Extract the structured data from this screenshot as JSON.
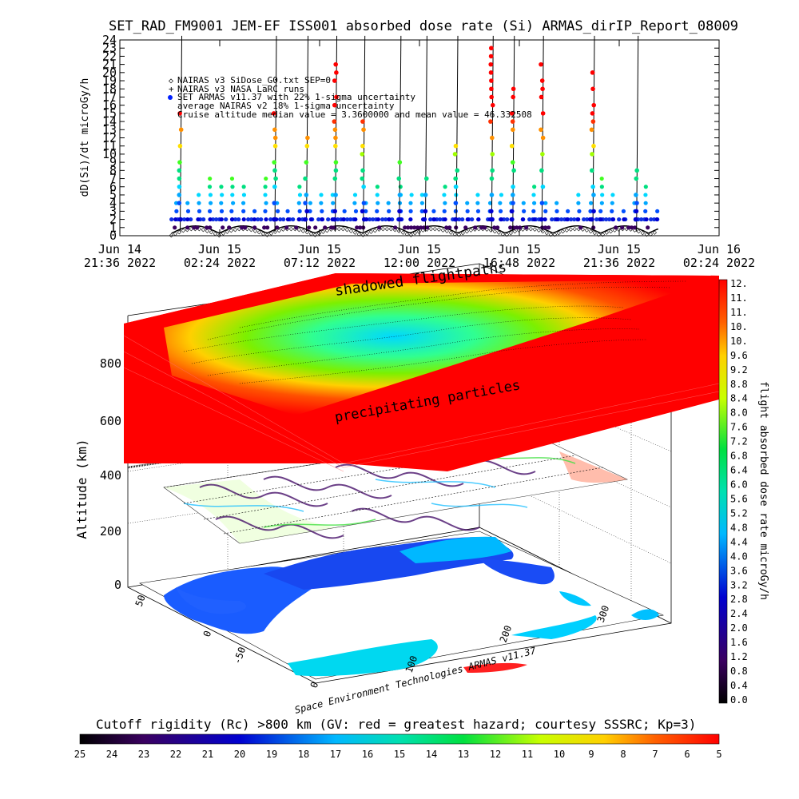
{
  "chart_data": [
    {
      "type": "scatter",
      "title": "SET_RAD_FM9001  JEM-EF ISS001 absorbed dose rate (Si) ARMAS_dirIP_Report_08009",
      "ylabel": "dD(Si)/dt microGy/h",
      "ylim": [
        0,
        24
      ],
      "y_ticks": [
        "0",
        "1",
        "2",
        "3",
        "4",
        "5",
        "6",
        "7",
        "8",
        "9",
        "10",
        "11",
        "12",
        "13",
        "14",
        "15",
        "16",
        "17",
        "18",
        "19",
        "20",
        "21",
        "22",
        "23",
        "24"
      ],
      "x_tick_labels": [
        {
          "line1": "Jun 14",
          "line2": "21:36 2022"
        },
        {
          "line1": "Jun 15",
          "line2": "02:24 2022"
        },
        {
          "line1": "Jun 15",
          "line2": "07:12 2022"
        },
        {
          "line1": "Jun 15",
          "line2": "12:00 2022"
        },
        {
          "line1": "Jun 15",
          "line2": "16:48 2022"
        },
        {
          "line1": "Jun 15",
          "line2": "21:36 2022"
        },
        {
          "line1": "Jun 16",
          "line2": "02:24 2022"
        }
      ],
      "xlim": [
        "2022-06-14 21:36",
        "2022-06-16 02:24"
      ],
      "legend": [
        "NAIRAS v3 SiDose_G0.txt SEP=0",
        "NAIRAS v3 NASA LaRC runs",
        "SET ARMAS v11.37 with 22% 1-sigma uncertainty",
        "average NAIRAS v2 18% 1-sigma uncertainty",
        "Cruise altitude median value = 3.3600000 and mean value = 46.332508"
      ],
      "legend_position": "top-left",
      "baseline_dose_level": 2,
      "spike_times": [
        "2022-06-15 00:30",
        "2022-06-15 05:03",
        "2022-06-15 06:34",
        "2022-06-15 07:57",
        "2022-06-15 09:18",
        "2022-06-15 11:02",
        "2022-06-15 12:17",
        "2022-06-15 13:46",
        "2022-06-15 15:28",
        "2022-06-15 16:29",
        "2022-06-15 17:53",
        "2022-06-15 20:20",
        "2022-06-15 22:26"
      ]
    },
    {
      "type": "heatmap",
      "subtype": "3d-surface",
      "zlabel": "Altitude (km)",
      "z_ticks": [
        "0",
        "200",
        "400",
        "600",
        "800"
      ],
      "y_ticks": [
        "-50",
        "0",
        "50"
      ],
      "x_ticks": [
        "0",
        "100",
        "200",
        "300"
      ],
      "top_surface_labels": {
        "top": "shadowed flightpaths",
        "bottom": "precipitating particles"
      },
      "colorbar_right": {
        "label": "flight absorbed dose rate microGy/h",
        "ticks": [
          "0.0",
          "0.4",
          "0.8",
          "1.2",
          "1.6",
          "2.0",
          "2.4",
          "2.8",
          "3.2",
          "3.6",
          "4.0",
          "4.4",
          "4.8",
          "5.2",
          "5.6",
          "6.0",
          "6.4",
          "6.8",
          "7.2",
          "7.6",
          "8.0",
          "8.4",
          "8.8",
          "9.2",
          "9.6",
          "10.",
          "10.",
          "11.",
          "11.",
          "12."
        ]
      },
      "colorbar_bottom": {
        "label": "Cutoff rigidity (Rc) >800 km (GV: red = greatest hazard; courtesy SSSRC; Kp=3)",
        "ticks": [
          "25",
          "24",
          "23",
          "22",
          "21",
          "20",
          "19",
          "18",
          "17",
          "16",
          "15",
          "14",
          "13",
          "12",
          "11",
          "10",
          "9",
          "8",
          "7",
          "6",
          "5"
        ]
      },
      "credit": "Space Environment Technologies ARMAS v11.37"
    }
  ]
}
